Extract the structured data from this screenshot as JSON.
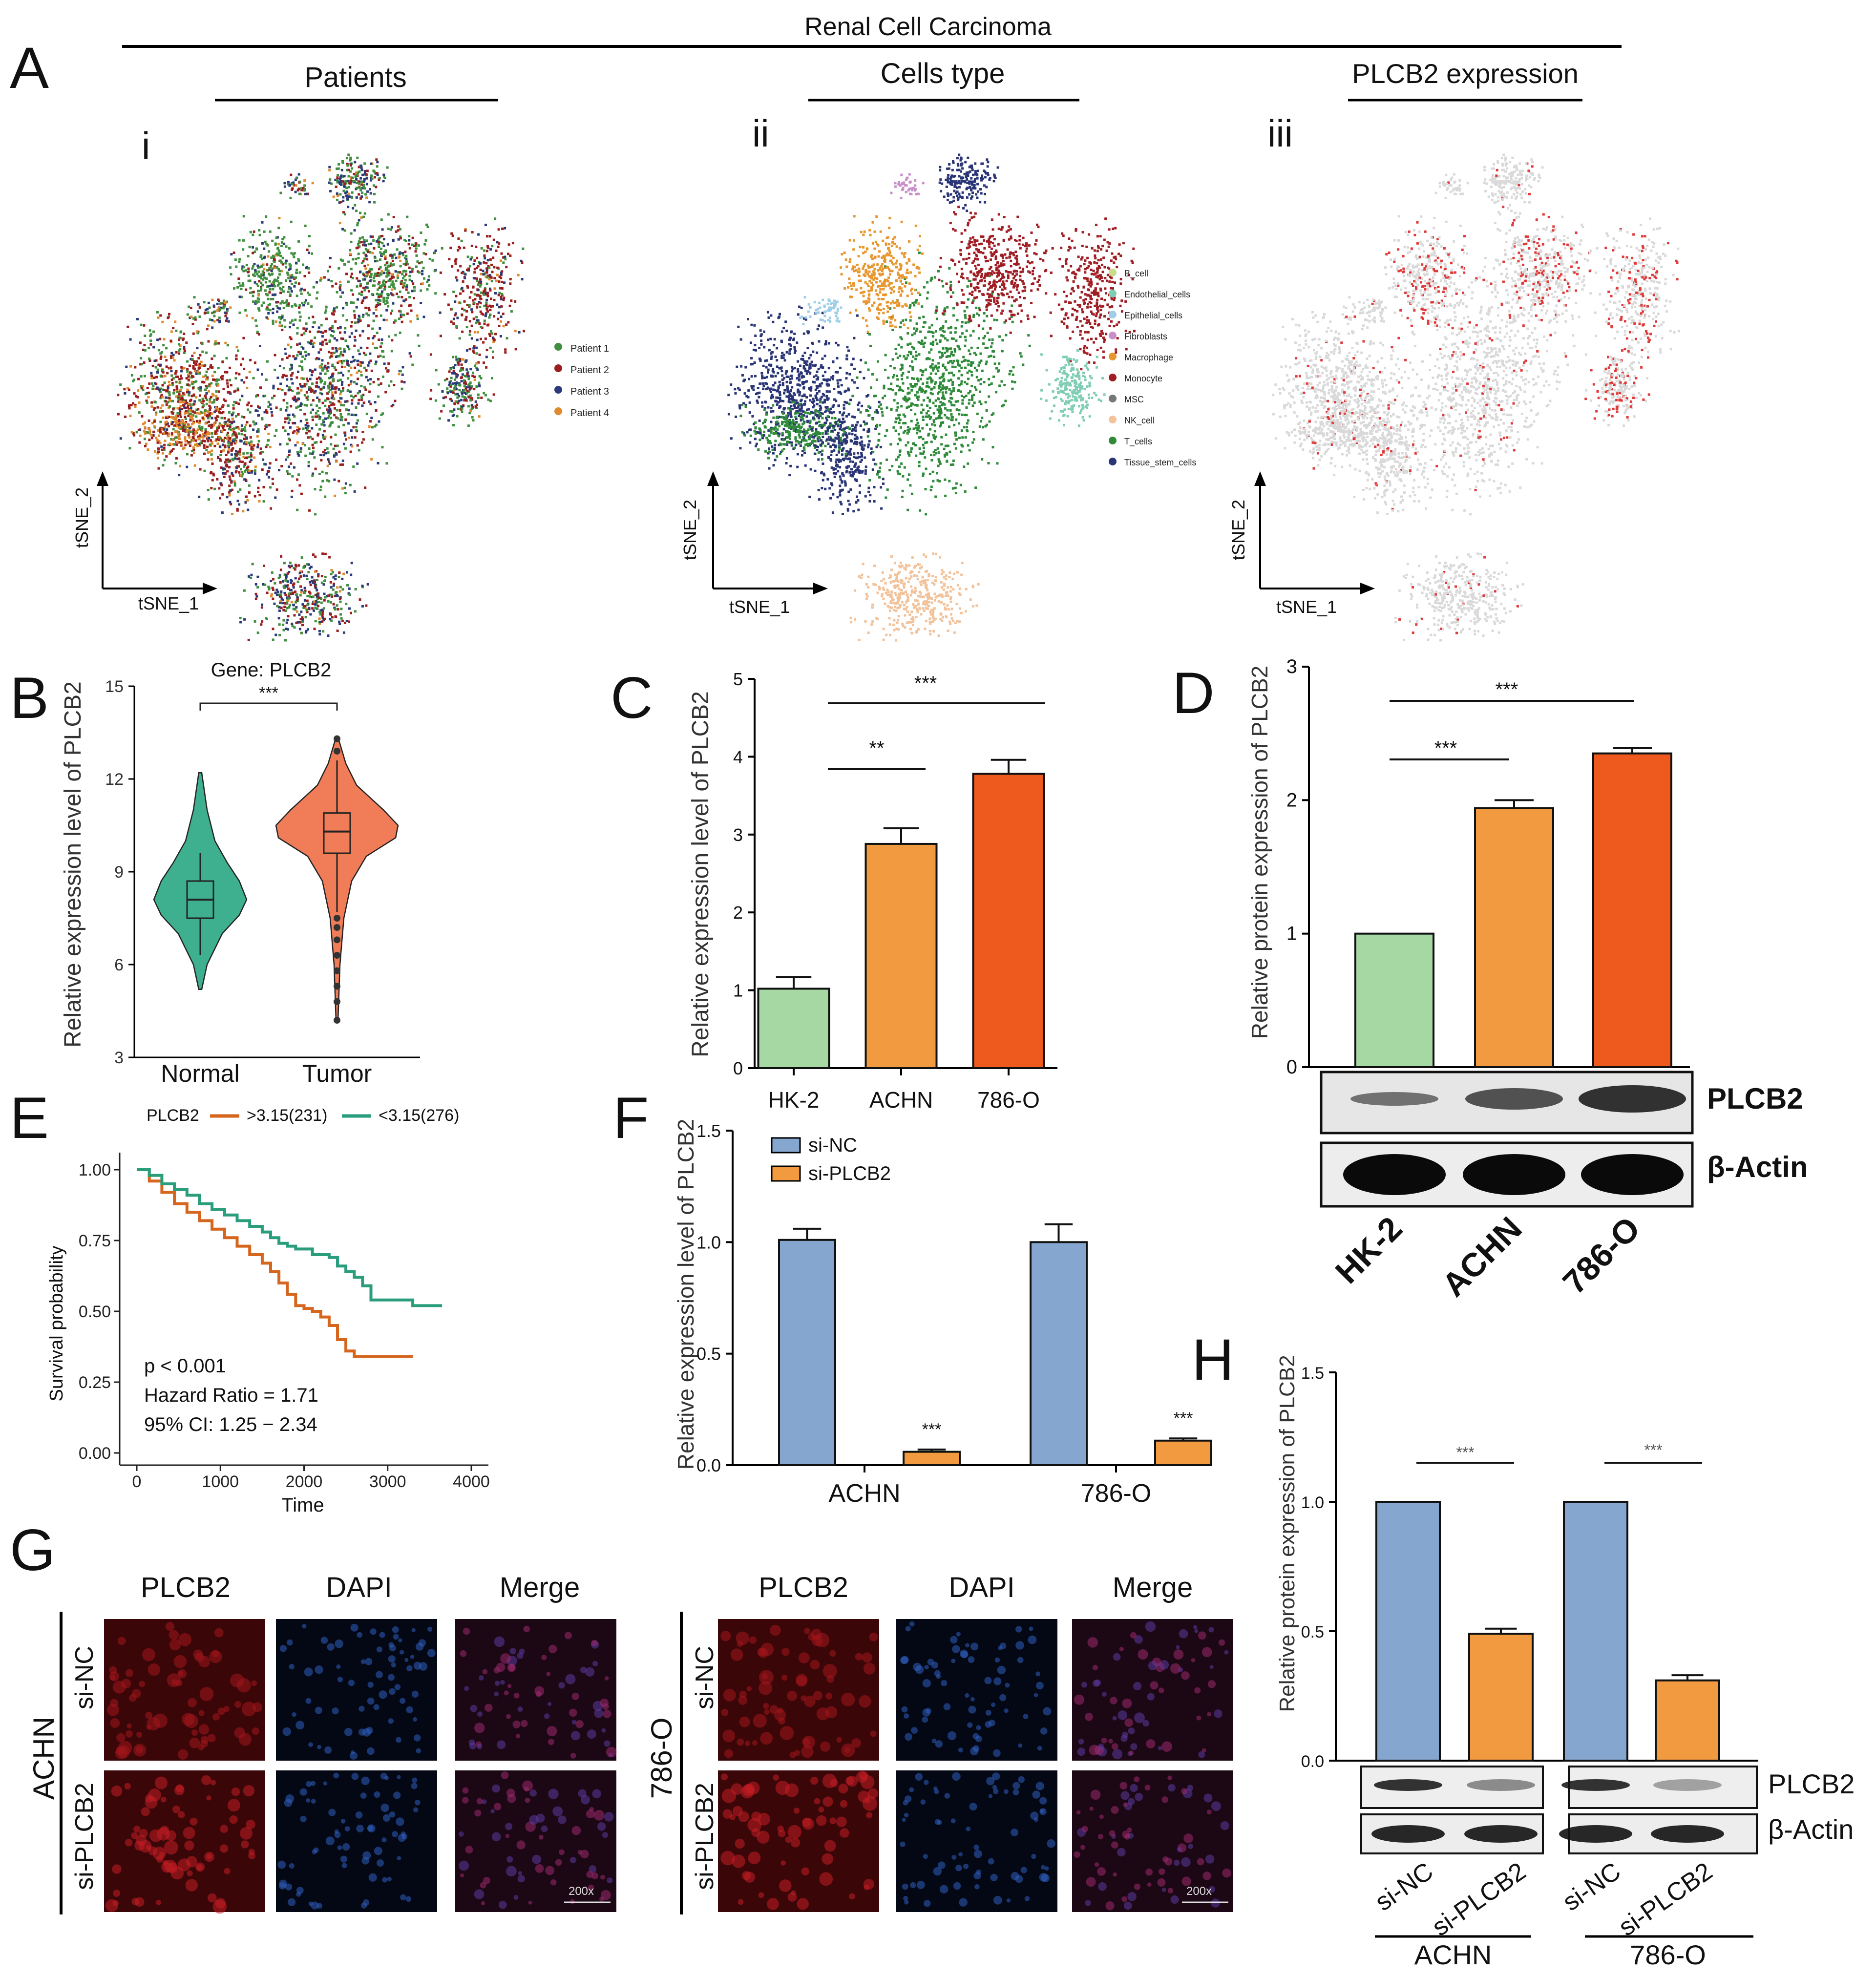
{
  "figure": {
    "main_title": "Renal Cell Carcinoma",
    "panel_labels": {
      "A": "A",
      "B": "B",
      "C": "C",
      "D": "D",
      "E": "E",
      "F": "F",
      "G": "G",
      "H": "H"
    },
    "sub_labels": {
      "i": "i",
      "ii": "ii",
      "iii": "iii"
    },
    "colors": {
      "green": "#a6d8a4",
      "orange": "#f29a3f",
      "dark_orange": "#ee5a1d",
      "blue": "#85a6cf",
      "teal": "#2a9d7c",
      "km_orange": "#d6651e",
      "violin_teal": "#3fb08f",
      "violin_orange": "#f07c58",
      "red_dot": "#e03a3a"
    }
  },
  "chart_data": [
    {
      "id": "A-i",
      "type": "scatter",
      "title": "Patients",
      "xlabel": "tSNE_1",
      "ylabel": "tSNE_2",
      "legend": [
        "Patient 1",
        "Patient 2",
        "Patient 3",
        "Patient 4"
      ],
      "legend_colors": [
        "#3f8f3f",
        "#9b1d1d",
        "#2b3a7a",
        "#e08a2e"
      ]
    },
    {
      "id": "A-ii",
      "type": "scatter",
      "title": "Cells type",
      "xlabel": "tSNE_1",
      "ylabel": "tSNE_2",
      "legend": [
        "B_cell",
        "Endothelial_cells",
        "Epithelial_cells",
        "Fibroblasts",
        "Macrophage",
        "Monocyte",
        "MSC",
        "NK_cell",
        "T_cells",
        "Tissue_stem_cells"
      ],
      "legend_colors": [
        "#c9dc8a",
        "#7fcdb4",
        "#9fcfe8",
        "#c98fc9",
        "#e8962e",
        "#a01d24",
        "#777777",
        "#f2c29a",
        "#2f8a3a",
        "#2a3576"
      ]
    },
    {
      "id": "A-iii",
      "type": "scatter",
      "title": "PLCB2 expression",
      "xlabel": "tSNE_1",
      "ylabel": "tSNE_2"
    },
    {
      "id": "B",
      "type": "violin",
      "title": "Gene: PLCB2",
      "ylabel": "Relative expression level of PLCB2",
      "categories": [
        "Normal",
        "Tumor"
      ],
      "median": [
        8.1,
        10.3
      ],
      "q1": [
        7.5,
        9.6
      ],
      "q3": [
        8.7,
        10.9
      ],
      "whisker_low": [
        6.3,
        7.7
      ],
      "whisker_high": [
        9.6,
        12.6
      ],
      "outliers": [
        [],
        [
          4.2,
          4.8,
          5.3,
          5.8,
          6.3,
          6.8,
          7.2,
          7.5,
          12.9,
          13.3
        ]
      ],
      "ylim": [
        3,
        15
      ],
      "yticks": [
        "3",
        "6",
        "9",
        "12",
        "15"
      ],
      "significance": "***"
    },
    {
      "id": "C",
      "type": "bar",
      "ylabel": "Relative expression level of PLCB2",
      "categories": [
        "HK-2",
        "ACHN",
        "786-O"
      ],
      "values": [
        1.02,
        2.88,
        3.78
      ],
      "errors": [
        0.15,
        0.2,
        0.18
      ],
      "ylim": [
        0,
        5
      ],
      "yticks": [
        "0",
        "1",
        "2",
        "3",
        "4",
        "5"
      ],
      "significance": [
        "**",
        "***"
      ]
    },
    {
      "id": "D",
      "type": "bar",
      "ylabel": "Relative protein expression of PLCB2",
      "categories": [
        "HK-2",
        "ACHN",
        "786-O"
      ],
      "values": [
        1.0,
        1.94,
        2.35
      ],
      "errors": [
        0,
        0.06,
        0.04
      ],
      "ylim": [
        0,
        3
      ],
      "yticks": [
        "0",
        "1",
        "2",
        "3"
      ],
      "significance": [
        "***",
        "***"
      ],
      "blot_labels": [
        "PLCB2",
        "β-Actin"
      ]
    },
    {
      "id": "E",
      "type": "line",
      "xlabel": "Time",
      "ylabel": "Survival probability",
      "legend_title": "PLCB2",
      "series": [
        {
          "name": ">3.15(231)",
          "x": [
            0,
            150,
            300,
            450,
            600,
            750,
            900,
            1050,
            1200,
            1350,
            1500,
            1600,
            1700,
            1800,
            1900,
            2000,
            2100,
            2200,
            2300,
            2400,
            2500,
            2600,
            2800,
            3000,
            3300
          ],
          "y": [
            1.0,
            0.96,
            0.92,
            0.88,
            0.85,
            0.82,
            0.79,
            0.76,
            0.73,
            0.7,
            0.67,
            0.64,
            0.6,
            0.56,
            0.52,
            0.51,
            0.5,
            0.48,
            0.45,
            0.4,
            0.36,
            0.34,
            0.34,
            0.34,
            0.34
          ]
        },
        {
          "name": "<3.15(276)",
          "x": [
            0,
            150,
            300,
            450,
            600,
            750,
            900,
            1050,
            1200,
            1350,
            1500,
            1600,
            1700,
            1800,
            1900,
            2000,
            2100,
            2200,
            2300,
            2400,
            2500,
            2600,
            2700,
            2800,
            3000,
            3300,
            3650
          ],
          "y": [
            1.0,
            0.98,
            0.95,
            0.93,
            0.91,
            0.88,
            0.86,
            0.84,
            0.82,
            0.8,
            0.78,
            0.76,
            0.74,
            0.73,
            0.72,
            0.72,
            0.7,
            0.7,
            0.69,
            0.66,
            0.64,
            0.62,
            0.59,
            0.54,
            0.54,
            0.52,
            0.52
          ]
        }
      ],
      "xlim": [
        0,
        4000
      ],
      "ylim": [
        0,
        1
      ],
      "xticks": [
        "0",
        "1000",
        "2000",
        "3000",
        "4000"
      ],
      "yticks": [
        "0.00",
        "0.25",
        "0.50",
        "0.75",
        "1.00"
      ],
      "annotations": [
        "p < 0.001",
        "Hazard Ratio = 1.71",
        "95% CI: 1.25 − 2.34"
      ]
    },
    {
      "id": "F",
      "type": "bar",
      "ylabel": "Relative expression level of PLCB2",
      "categories": [
        "ACHN",
        "786-O"
      ],
      "series": [
        {
          "name": "si-NC",
          "values": [
            1.01,
            1.0
          ],
          "errors": [
            0.05,
            0.08
          ]
        },
        {
          "name": "si-PLCB2",
          "values": [
            0.06,
            0.11
          ],
          "errors": [
            0.01,
            0.01
          ]
        }
      ],
      "ylim": [
        0,
        1.5
      ],
      "yticks": [
        "0.0",
        "0.5",
        "1.0",
        "1.5"
      ],
      "significance": [
        "***",
        "***"
      ]
    },
    {
      "id": "H",
      "type": "bar",
      "ylabel": "Relative protein expression of PLCB2",
      "categories": [
        "si-NC",
        "si-PLCB2",
        "si-NC",
        "si-PLCB2"
      ],
      "groups": [
        "ACHN",
        "786-O"
      ],
      "values": [
        1.0,
        0.49,
        1.0,
        0.31
      ],
      "errors": [
        0,
        0.02,
        0,
        0.02
      ],
      "ylim": [
        0,
        1.5
      ],
      "yticks": [
        "0.0",
        "0.5",
        "1.0",
        "1.5"
      ],
      "significance": [
        "***",
        "***"
      ],
      "blot_labels": [
        "PLCB2",
        "β-Actin"
      ]
    }
  ],
  "panel_g": {
    "columns": [
      "PLCB2",
      "DAPI",
      "Merge"
    ],
    "left_cell_line": "ACHN",
    "right_cell_line": "786-O",
    "rows": [
      "si-NC",
      "si-PLCB2"
    ],
    "scale_label": "200x"
  }
}
